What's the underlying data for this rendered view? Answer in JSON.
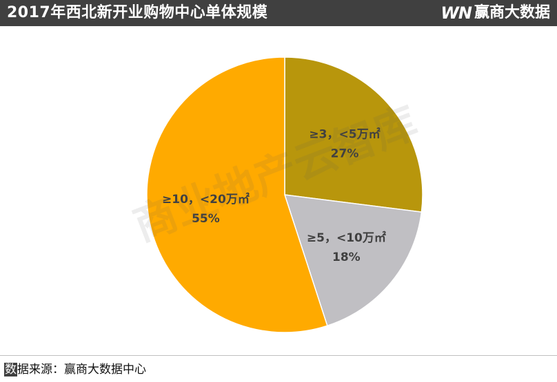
{
  "header": {
    "title": "2017年西北新开业购物中心单体规模",
    "brand_mark": "WN",
    "brand_name": "赢商大数据"
  },
  "watermark": "商业地产云智库",
  "footer": {
    "first_char": "数",
    "rest": "据来源：赢商大数据中心"
  },
  "colors": {
    "header_bg": "#404040",
    "slice_small": "#B8960C",
    "slice_mid": "#C0BFC3",
    "slice_large": "#FFAA00"
  },
  "chart_data": {
    "type": "pie",
    "title": "2017年西北新开业购物中心单体规模",
    "slices": [
      {
        "label": "≥3，<5万㎡",
        "value": 27,
        "pct_label": "27%",
        "color": "#B8960C"
      },
      {
        "label": "≥5，<10万㎡",
        "value": 18,
        "pct_label": "18%",
        "color": "#C0BFC3"
      },
      {
        "label": "≥10，<20万㎡",
        "value": 55,
        "pct_label": "55%",
        "color": "#FFAA00"
      }
    ]
  }
}
